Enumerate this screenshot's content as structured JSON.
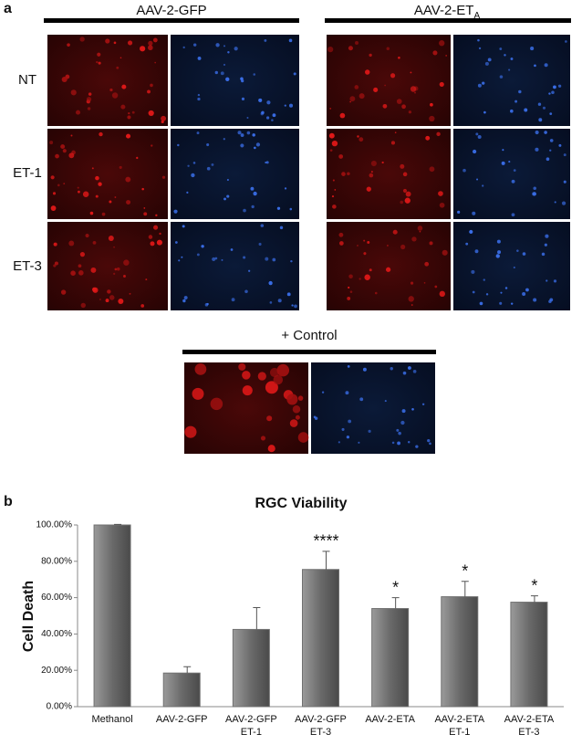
{
  "panel_a": {
    "label": "a",
    "groups": [
      {
        "title": "AAV-2-GFP"
      },
      {
        "title": "AAV-2-ET",
        "subscript": "A"
      }
    ],
    "rows": [
      "NT",
      "ET-1",
      "ET-3"
    ],
    "control": "+ Control"
  },
  "chart_data": {
    "type": "bar",
    "label": "b",
    "title": "RGC Viability",
    "ylabel": "Cell Death",
    "categories": [
      "Methanol",
      "AAV-2-GFP",
      "AAV-2-GFP ET-1",
      "AAV-2-GFP ET-3",
      "AAV-2-ETA",
      "AAV-2-ETA ET-1",
      "AAV-2-ETA ET-3"
    ],
    "values": [
      100,
      18.5,
      42.5,
      75.5,
      54,
      60.5,
      57.5
    ],
    "errors": [
      0.3,
      3.5,
      12,
      10,
      6,
      8.5,
      3.5
    ],
    "annotations": [
      null,
      null,
      null,
      "****",
      "*",
      "*",
      "*"
    ],
    "color": "#707070",
    "ylim": [
      0,
      100
    ],
    "yticks": [
      {
        "value": 0,
        "label": "0.00%"
      },
      {
        "value": 20,
        "label": "20.00%"
      },
      {
        "value": 40,
        "label": "40.00%"
      },
      {
        "value": 60,
        "label": "60.00%"
      },
      {
        "value": 80,
        "label": "80.00%"
      },
      {
        "value": 100,
        "label": "100.00%"
      }
    ]
  }
}
